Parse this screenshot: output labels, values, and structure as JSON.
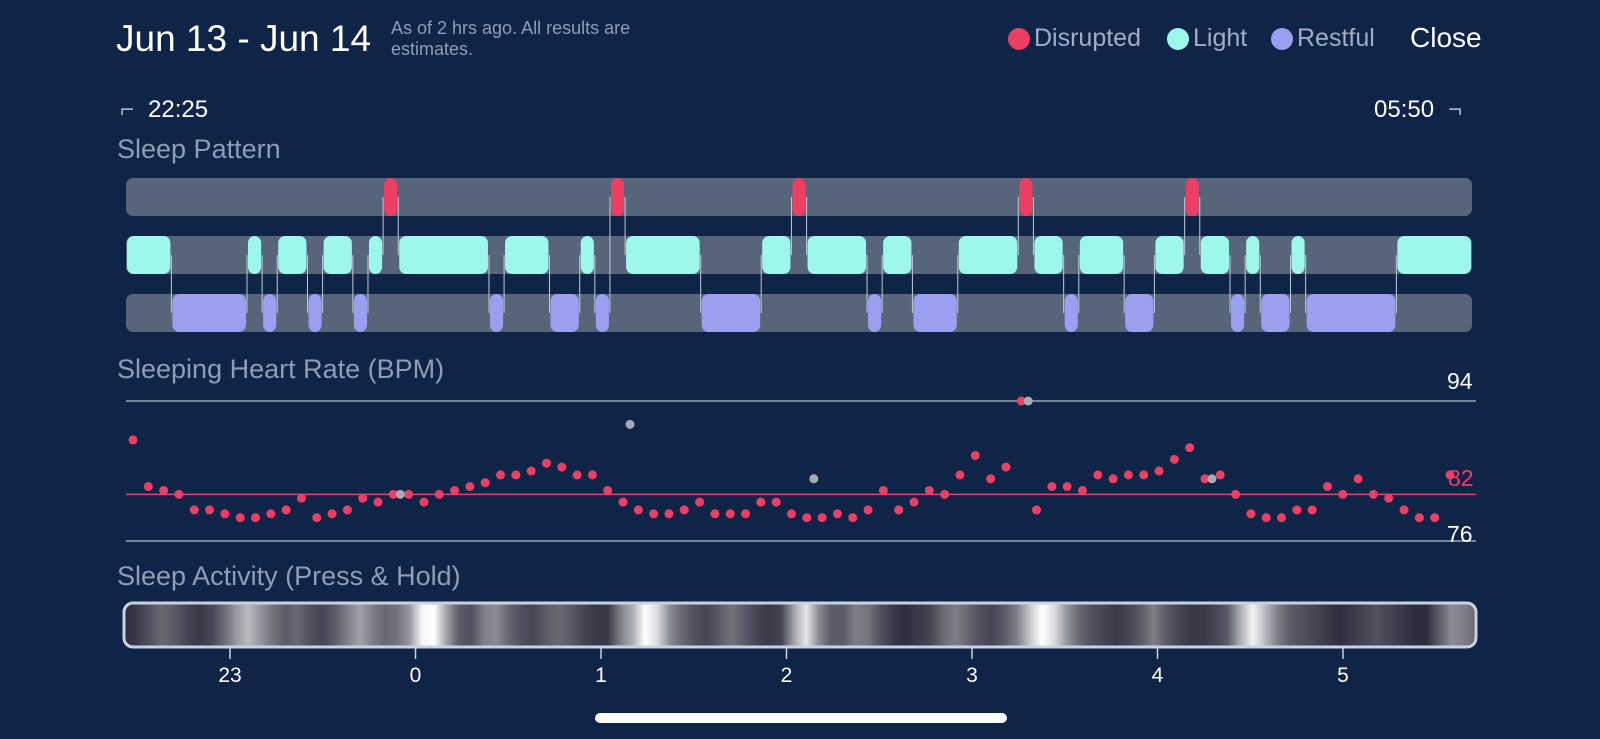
{
  "header": {
    "title": "Jun 13 - Jun 14",
    "subtitle": "As of 2 hrs ago. All results are estimates.",
    "close_label": "Close"
  },
  "legend": [
    {
      "label": "Disrupted",
      "color": "#ed3e64"
    },
    {
      "label": "Light",
      "color": "#9df8eb"
    },
    {
      "label": "Restful",
      "color": "#9b9ff0"
    }
  ],
  "range": {
    "start": "22:25",
    "end": "05:50"
  },
  "sleep_pattern": {
    "title": "Sleep Pattern",
    "timeline_start_hours": 22.4167,
    "timeline_end_hours": 29.8333,
    "colors": {
      "track": "#566579",
      "disrupted": "#ed3e64",
      "light": "#9df8eb",
      "restful": "#9b9ff0"
    },
    "segments": [
      {
        "stage": "light",
        "start": 22.4167,
        "end": 22.6667
      },
      {
        "stage": "restful",
        "start": 22.6667,
        "end": 23.0833
      },
      {
        "stage": "light",
        "start": 23.0833,
        "end": 23.1667
      },
      {
        "stage": "restful",
        "start": 23.1667,
        "end": 23.25
      },
      {
        "stage": "light",
        "start": 23.25,
        "end": 23.4167
      },
      {
        "stage": "restful",
        "start": 23.4167,
        "end": 23.5
      },
      {
        "stage": "light",
        "start": 23.5,
        "end": 23.6667
      },
      {
        "stage": "restful",
        "start": 23.6667,
        "end": 23.75
      },
      {
        "stage": "light",
        "start": 23.75,
        "end": 23.8333
      },
      {
        "stage": "disrupted",
        "start": 23.8333,
        "end": 23.9167
      },
      {
        "stage": "light",
        "start": 23.9167,
        "end": 24.4167
      },
      {
        "stage": "restful",
        "start": 24.4167,
        "end": 24.5
      },
      {
        "stage": "light",
        "start": 24.5,
        "end": 24.75
      },
      {
        "stage": "restful",
        "start": 24.75,
        "end": 24.9167
      },
      {
        "stage": "light",
        "start": 24.9167,
        "end": 25.0
      },
      {
        "stage": "restful",
        "start": 25.0,
        "end": 25.0833
      },
      {
        "stage": "disrupted",
        "start": 25.0833,
        "end": 25.1667
      },
      {
        "stage": "light",
        "start": 25.1667,
        "end": 25.5833
      },
      {
        "stage": "restful",
        "start": 25.5833,
        "end": 25.9167
      },
      {
        "stage": "light",
        "start": 25.9167,
        "end": 26.0833
      },
      {
        "stage": "disrupted",
        "start": 26.0833,
        "end": 26.1667
      },
      {
        "stage": "light",
        "start": 26.1667,
        "end": 26.5
      },
      {
        "stage": "restful",
        "start": 26.5,
        "end": 26.5833
      },
      {
        "stage": "light",
        "start": 26.5833,
        "end": 26.75
      },
      {
        "stage": "restful",
        "start": 26.75,
        "end": 27.0
      },
      {
        "stage": "light",
        "start": 27.0,
        "end": 27.3333
      },
      {
        "stage": "disrupted",
        "start": 27.3333,
        "end": 27.4167
      },
      {
        "stage": "light",
        "start": 27.4167,
        "end": 27.5833
      },
      {
        "stage": "restful",
        "start": 27.5833,
        "end": 27.6667
      },
      {
        "stage": "light",
        "start": 27.6667,
        "end": 27.9167
      },
      {
        "stage": "restful",
        "start": 27.9167,
        "end": 28.0833
      },
      {
        "stage": "light",
        "start": 28.0833,
        "end": 28.25
      },
      {
        "stage": "disrupted",
        "start": 28.25,
        "end": 28.3333
      },
      {
        "stage": "light",
        "start": 28.3333,
        "end": 28.5
      },
      {
        "stage": "restful",
        "start": 28.5,
        "end": 28.5833
      },
      {
        "stage": "light",
        "start": 28.5833,
        "end": 28.6667
      },
      {
        "stage": "restful",
        "start": 28.6667,
        "end": 28.8333
      },
      {
        "stage": "light",
        "start": 28.8333,
        "end": 28.9167
      },
      {
        "stage": "restful",
        "start": 28.9167,
        "end": 29.4167
      },
      {
        "stage": "light",
        "start": 29.4167,
        "end": 29.8333
      }
    ]
  },
  "heart_rate": {
    "title": "Sleeping Heart Rate (BPM)",
    "max_label": "94",
    "avg_label": "82",
    "min_label": "76",
    "max": 94,
    "avg": 82,
    "min": 76,
    "colors": {
      "point": "#ed3e64",
      "outlier": "#a5aab4",
      "avg_line": "#ed3e64",
      "ref_line": "#9aa4b4"
    },
    "values": [
      89,
      83,
      82.5,
      82,
      80,
      80,
      79.5,
      79,
      79,
      79.5,
      80,
      81.5,
      79,
      79.5,
      80,
      81.5,
      81,
      82,
      82,
      81,
      82,
      82.5,
      83,
      83.5,
      84.5,
      84.5,
      85,
      86,
      85.5,
      84.5,
      84.5,
      82.5,
      81,
      80,
      79.5,
      79.5,
      80,
      81,
      79.5,
      79.5,
      79.5,
      81,
      81,
      79.5,
      79,
      79,
      79.5,
      79,
      80,
      82.5,
      80,
      81,
      82.5,
      82,
      84.5,
      87,
      84,
      85.5,
      94,
      80,
      83,
      83,
      82.5,
      84.5,
      84,
      84.5,
      84.5,
      85,
      86.5,
      88,
      84,
      84.5,
      82,
      79.5,
      79,
      79,
      80,
      80,
      83,
      82,
      84,
      82,
      81.5,
      80,
      79,
      79,
      84.5
    ],
    "outliers": [
      {
        "index": 17,
        "value": 82
      },
      {
        "index": 32,
        "value": 91
      },
      {
        "index": 44,
        "value": 84
      },
      {
        "index": 58,
        "value": 94
      },
      {
        "index": 70,
        "value": 84
      }
    ]
  },
  "sleep_activity": {
    "title": "Sleep Activity (Press & Hold)",
    "intensity": [
      0.1,
      0.15,
      0.25,
      0.35,
      0.3,
      0.2,
      0.15,
      0.2,
      0.35,
      0.55,
      0.7,
      0.55,
      0.4,
      0.3,
      0.35,
      0.25,
      0.2,
      0.3,
      0.45,
      0.6,
      0.45,
      0.35,
      0.4,
      0.55,
      0.95,
      1.0,
      0.6,
      0.3,
      0.25,
      0.45,
      0.5,
      0.35,
      0.25,
      0.2,
      0.3,
      0.35,
      0.3,
      0.2,
      0.15,
      0.15,
      0.45,
      0.65,
      1.0,
      0.85,
      0.5,
      0.35,
      0.25,
      0.2,
      0.3,
      0.4,
      0.3,
      0.2,
      0.15,
      0.2,
      0.6,
      0.9,
      0.5,
      0.3,
      0.3,
      0.45,
      0.4,
      0.25,
      0.15,
      0.1,
      0.15,
      0.2,
      0.35,
      0.45,
      0.35,
      0.25,
      0.2,
      0.3,
      0.45,
      0.75,
      1.0,
      0.85,
      0.55,
      0.35,
      0.25,
      0.2,
      0.15,
      0.2,
      0.3,
      0.45,
      0.3,
      0.2,
      0.15,
      0.15,
      0.2,
      0.3,
      0.65,
      0.95,
      0.7,
      0.45,
      0.3,
      0.25,
      0.2,
      0.15,
      0.1,
      0.15,
      0.2,
      0.25,
      0.2,
      0.15,
      0.1,
      0.1,
      0.3,
      0.5,
      0.45,
      0.35
    ]
  },
  "x_axis": {
    "ticks": [
      {
        "label": "23",
        "hours": 23
      },
      {
        "label": "0",
        "hours": 24
      },
      {
        "label": "1",
        "hours": 25
      },
      {
        "label": "2",
        "hours": 26
      },
      {
        "label": "3",
        "hours": 27
      },
      {
        "label": "4",
        "hours": 28
      },
      {
        "label": "5",
        "hours": 29
      }
    ]
  }
}
